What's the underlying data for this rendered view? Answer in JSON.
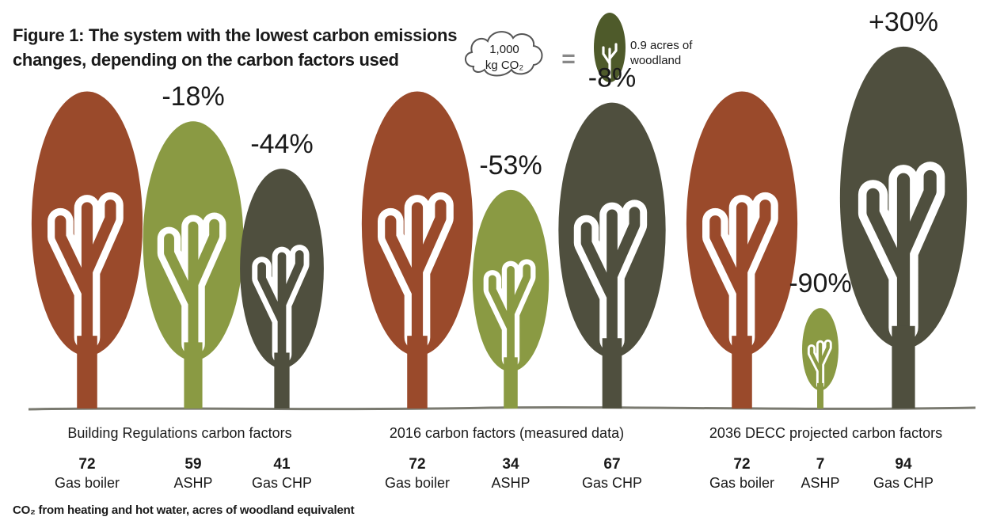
{
  "title": "Figure 1: The system with the lowest carbon emissions changes, depending on the carbon factors used",
  "legend": {
    "cloud_line1": "1,000",
    "cloud_line2": "kg CO₂",
    "equals": "=",
    "tree_line1": "0.9 acres of",
    "tree_line2": "woodland"
  },
  "footnote": "CO₂ from heating and hot water, acres of woodland equivalent",
  "colors": {
    "Gas boiler": "#9a4a2b",
    "ASHP": "#8a9a43",
    "Gas CHP": "#4f4f3e",
    "legend_tree": "#4e5a2a",
    "ground": "#7a7a70"
  },
  "chart_data": {
    "type": "pictograph",
    "unit": "acres of woodland equivalent",
    "groups": [
      {
        "label": "Building Regulations carbon factors",
        "items": [
          {
            "system": "Gas boiler",
            "value": 72,
            "change": ""
          },
          {
            "system": "ASHP",
            "value": 59,
            "change": "-18%"
          },
          {
            "system": "Gas CHP",
            "value": 41,
            "change": "-44%"
          }
        ]
      },
      {
        "label": "2016 carbon factors (measured data)",
        "items": [
          {
            "system": "Gas boiler",
            "value": 72,
            "change": ""
          },
          {
            "system": "ASHP",
            "value": 34,
            "change": "-53%"
          },
          {
            "system": "Gas CHP",
            "value": 67,
            "change": "-8%"
          }
        ]
      },
      {
        "label": "2036 DECC projected carbon factors",
        "items": [
          {
            "system": "Gas boiler",
            "value": 72,
            "change": ""
          },
          {
            "system": "ASHP",
            "value": 7,
            "change": "-90%"
          },
          {
            "system": "Gas CHP",
            "value": 94,
            "change": "+30%"
          }
        ]
      }
    ]
  }
}
